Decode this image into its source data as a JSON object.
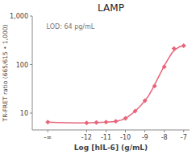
{
  "chart_data": {
    "type": "line",
    "title": "LAMP",
    "x_label": "Log [hIL-6] (g/mL)",
    "y_label": "TR-FRET ratio (665/615 • 1,000)",
    "annotations": [
      "LOD: 64 pg/mL"
    ],
    "log": "y",
    "grid": false,
    "xlim": [
      -14.8,
      -6.7
    ],
    "xticks": [
      {
        "value": -14,
        "label": "-∞"
      },
      -12,
      -11,
      -10,
      -9,
      -8,
      -7
    ],
    "ylim": [
      4.5,
      1000
    ],
    "yticks": [
      10,
      100,
      {
        "value": 1000,
        "label": "1,000"
      }
    ],
    "series": [
      {
        "type": "line",
        "color": "#e8647a",
        "x": [
          -14,
          -13.5,
          -13,
          -12.5,
          -12,
          -11.5,
          -11,
          -10.8,
          -10.6,
          -10.4,
          -10.2,
          -10,
          -9.8,
          -9.6,
          -9.4,
          -9.2,
          -9,
          -8.8,
          -8.6,
          -8.4,
          -8.2,
          -8,
          -7.8,
          -7.6,
          -7.4,
          -7.2,
          -7
        ],
        "values": [
          6.5,
          6.4,
          6.35,
          6.3,
          6.3,
          6.4,
          6.5,
          6.6,
          6.7,
          6.9,
          7.2,
          7.8,
          8.8,
          10.2,
          12.0,
          14.5,
          18,
          23,
          32,
          46,
          66,
          95,
          130,
          175,
          210,
          235,
          245
        ]
      },
      {
        "type": "scatter",
        "color": "#e8647a",
        "marker": "diamond",
        "x": [
          -14,
          -12,
          -11.5,
          -11,
          -10.5,
          -10,
          -9.5,
          -9,
          -8.5,
          -8,
          -7.5,
          -7
        ],
        "values": [
          6.5,
          6.3,
          6.4,
          6.5,
          6.8,
          7.8,
          11,
          18,
          36,
          90,
          215,
          245
        ]
      }
    ]
  }
}
